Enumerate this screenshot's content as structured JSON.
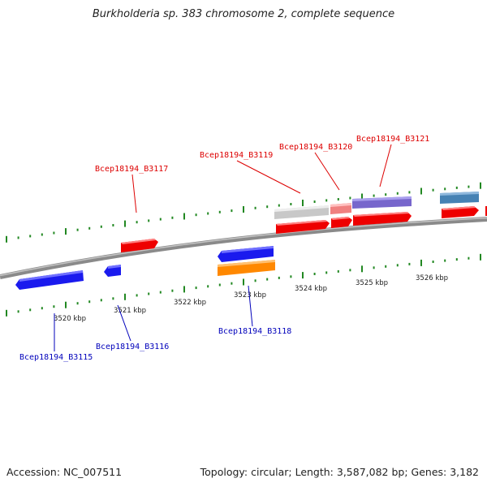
{
  "title": "Burkholderia sp. 383 chromosome 2, complete sequence",
  "footer": {
    "accession": "Accession: NC_007511",
    "summary": "Topology: circular; Length: 3,587,082 bp; Genes: 3,182"
  },
  "colors": {
    "forward_label": "#dd0000",
    "reverse_label": "#0000bb",
    "tick": "#228822",
    "backbone": "#888888",
    "red_gene": "#ee0000",
    "blue_gene": "#1a1aee",
    "orange_gene": "#ff8800",
    "purple_gene": "#7766cc",
    "gray_gene": "#c8c8c8",
    "pink_gene": "#f08080",
    "steel_gene": "#4682b4"
  },
  "scale_labels": [
    "3520 kbp",
    "3521 kbp",
    "3522 kbp",
    "3523 kbp",
    "3524 kbp",
    "3525 kbp",
    "3526 kbp"
  ],
  "gene_labels": {
    "b3115": "Bcep18194_B3115",
    "b3116": "Bcep18194_B3116",
    "b3117": "Bcep18194_B3117",
    "b3118": "Bcep18194_B3118",
    "b3119": "Bcep18194_B3119",
    "b3120": "Bcep18194_B3120",
    "b3121": "Bcep18194_B3121"
  }
}
